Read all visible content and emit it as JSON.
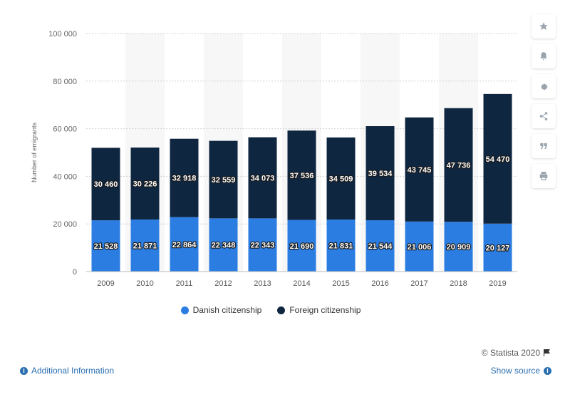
{
  "chart_data": {
    "type": "bar",
    "stacked": true,
    "categories": [
      "2009",
      "2010",
      "2011",
      "2012",
      "2013",
      "2014",
      "2015",
      "2016",
      "2017",
      "2018",
      "2019"
    ],
    "series": [
      {
        "name": "Danish citizenship",
        "color": "#2b7de1",
        "values": [
          21528,
          21871,
          22864,
          22348,
          22343,
          21690,
          21831,
          21544,
          21006,
          20909,
          20127
        ],
        "labels": [
          "21 528",
          "21 871",
          "22 864",
          "22 348",
          "22 343",
          "21 690",
          "21 831",
          "21 544",
          "21 006",
          "20 909",
          "20 127"
        ]
      },
      {
        "name": "Foreign citizenship",
        "color": "#0f2640",
        "values": [
          30460,
          30226,
          32918,
          32559,
          34073,
          37536,
          34509,
          39534,
          43745,
          47736,
          54470
        ],
        "labels": [
          "30 460",
          "30 226",
          "32 918",
          "32 559",
          "34 073",
          "37 536",
          "34 509",
          "39 534",
          "43 745",
          "47 736",
          "54 470"
        ]
      }
    ],
    "ylabel": "Number of emigrants",
    "xlabel": "",
    "ylim": [
      0,
      100000
    ],
    "yticks": [
      0,
      20000,
      40000,
      60000,
      80000,
      100000
    ],
    "ytick_labels": [
      "0",
      "20 000",
      "40 000",
      "60 000",
      "80 000",
      "100 000"
    ],
    "grid": true,
    "legend_position": "bottom"
  },
  "footer": {
    "credit": "© Statista 2020",
    "additional_info": "Additional Information",
    "show_source": "Show source"
  },
  "toolbar": {
    "icons": [
      "star-icon",
      "bell-icon",
      "gear-icon",
      "share-icon",
      "quote-icon",
      "print-icon"
    ]
  }
}
